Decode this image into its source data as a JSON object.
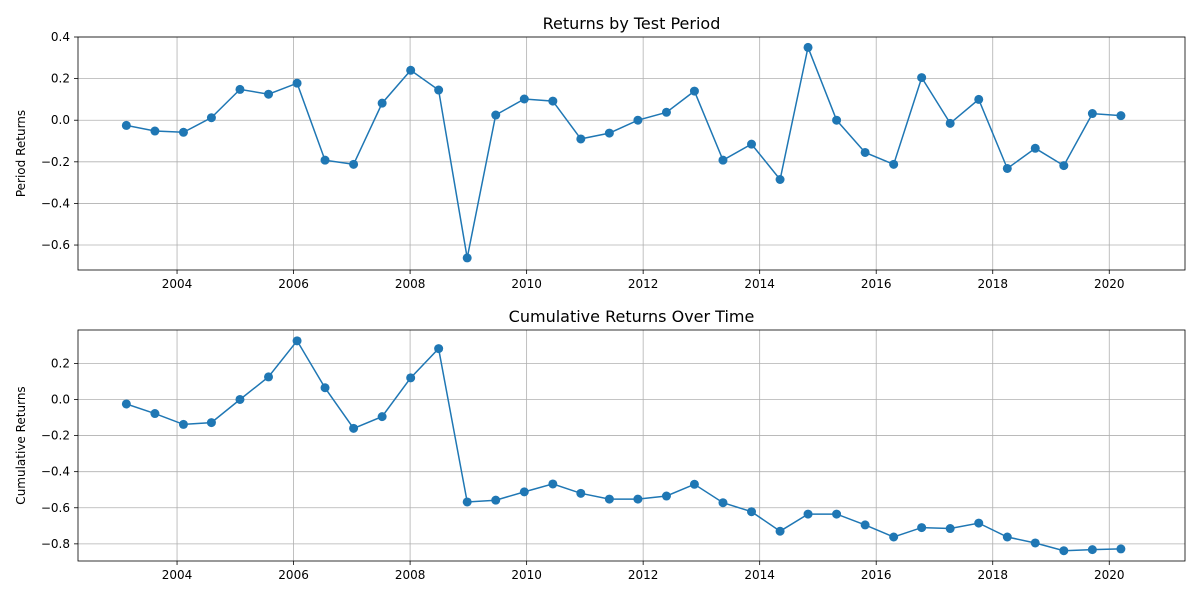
{
  "colors": {
    "series": "#1f77b4"
  },
  "chart_data": [
    {
      "type": "line",
      "title": "Returns by Test Period",
      "xlabel": "",
      "ylabel": "Period Returns",
      "grid": true,
      "xlim": [
        2002.3,
        2021.3
      ],
      "ylim": [
        -0.72,
        0.4
      ],
      "xticks": [
        2004,
        2006,
        2008,
        2010,
        2012,
        2014,
        2016,
        2018,
        2020
      ],
      "yticks": [
        -0.6,
        -0.4,
        -0.2,
        0.0,
        0.2,
        0.4
      ],
      "ytick_labels": [
        "−0.6",
        "−0.4",
        "−0.2",
        "0.0",
        "0.2",
        "0.4"
      ],
      "x": [
        2003.13,
        2003.62,
        2004.11,
        2004.59,
        2005.08,
        2005.57,
        2006.06,
        2006.54,
        2007.03,
        2007.52,
        2008.01,
        2008.49,
        2008.98,
        2009.47,
        2009.96,
        2010.45,
        2010.93,
        2011.42,
        2011.91,
        2012.4,
        2012.88,
        2013.37,
        2013.86,
        2014.35,
        2014.83,
        2015.32,
        2015.81,
        2016.3,
        2016.78,
        2017.27,
        2017.76,
        2018.25,
        2018.73,
        2019.22,
        2019.71,
        2020.2
      ],
      "values": [
        -0.025,
        -0.052,
        -0.058,
        0.012,
        0.148,
        0.125,
        0.178,
        -0.192,
        -0.212,
        0.082,
        0.24,
        0.145,
        -0.662,
        0.025,
        0.102,
        0.092,
        -0.09,
        -0.062,
        0.0,
        0.038,
        0.14,
        -0.192,
        -0.115,
        -0.285,
        0.35,
        0.0,
        -0.155,
        -0.212,
        0.205,
        -0.015,
        0.1,
        -0.232,
        -0.135,
        -0.218,
        0.032,
        0.022
      ]
    },
    {
      "type": "line",
      "title": "Cumulative Returns Over Time",
      "xlabel": "",
      "ylabel": "Cumulative Returns",
      "grid": true,
      "xlim": [
        2002.3,
        2021.3
      ],
      "ylim": [
        -0.895,
        0.385
      ],
      "xticks": [
        2004,
        2006,
        2008,
        2010,
        2012,
        2014,
        2016,
        2018,
        2020
      ],
      "yticks": [
        -0.8,
        -0.6,
        -0.4,
        -0.2,
        0.0,
        0.2
      ],
      "ytick_labels": [
        "−0.8",
        "−0.6",
        "−0.4",
        "−0.2",
        "0.0",
        "0.2"
      ],
      "x": [
        2003.13,
        2003.62,
        2004.11,
        2004.59,
        2005.08,
        2005.57,
        2006.06,
        2006.54,
        2007.03,
        2007.52,
        2008.01,
        2008.49,
        2008.98,
        2009.47,
        2009.96,
        2010.45,
        2010.93,
        2011.42,
        2011.91,
        2012.4,
        2012.88,
        2013.37,
        2013.86,
        2014.35,
        2014.83,
        2015.32,
        2015.81,
        2016.3,
        2016.78,
        2017.27,
        2017.76,
        2018.25,
        2018.73,
        2019.22,
        2019.71,
        2020.2
      ],
      "values": [
        -0.025,
        -0.078,
        -0.138,
        -0.128,
        0.0,
        0.125,
        0.325,
        0.065,
        -0.16,
        -0.095,
        0.12,
        0.282,
        -0.568,
        -0.558,
        -0.512,
        -0.468,
        -0.52,
        -0.552,
        -0.552,
        -0.535,
        -0.47,
        -0.572,
        -0.622,
        -0.73,
        -0.635,
        -0.635,
        -0.695,
        -0.762,
        -0.71,
        -0.715,
        -0.685,
        -0.762,
        -0.795,
        -0.838,
        -0.832,
        -0.828
      ]
    }
  ]
}
